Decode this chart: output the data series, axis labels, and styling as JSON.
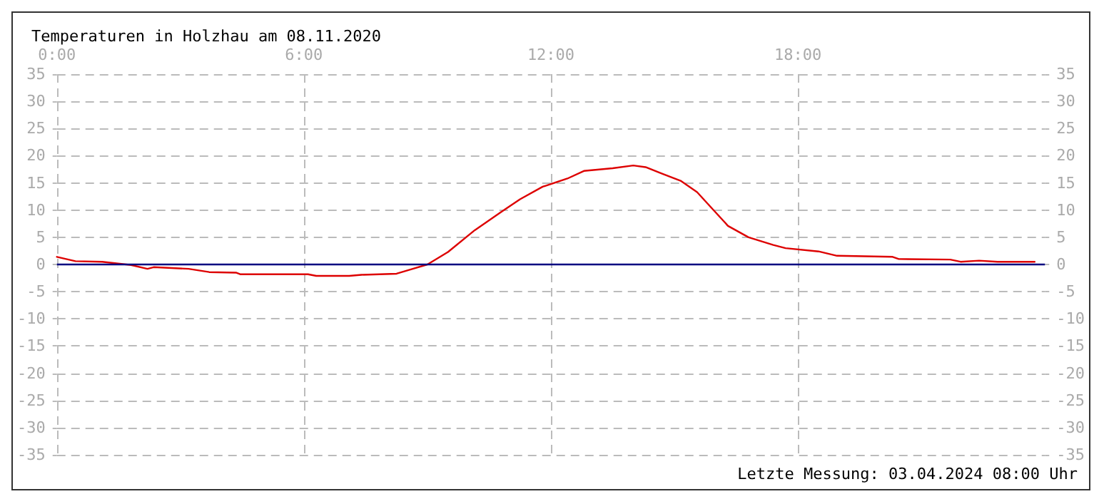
{
  "chart_data": {
    "type": "line",
    "title": "Temperaturen in Holzhau am 08.11.2020",
    "annotations": [
      "Letzte Messung: 03.04.2024 08:00 Uhr"
    ],
    "x": [
      0,
      0.45,
      1.1,
      1.8,
      2.2,
      2.35,
      3.2,
      3.7,
      4.35,
      4.45,
      6.1,
      6.3,
      7.1,
      7.4,
      8.25,
      8.6,
      9.0,
      9.5,
      10.15,
      10.8,
      11.25,
      11.8,
      12.4,
      12.8,
      13.5,
      14.0,
      14.3,
      14.7,
      15.15,
      15.55,
      15.95,
      16.3,
      16.8,
      17.4,
      17.7,
      18.5,
      18.95,
      20.3,
      20.45,
      21.7,
      21.95,
      22.4,
      22.85,
      23.75
    ],
    "series": [
      {
        "color": "#dd0000",
        "values": [
          1.4,
          0.6,
          0.5,
          -0.1,
          -0.8,
          -0.5,
          -0.8,
          -1.4,
          -1.5,
          -1.8,
          -1.8,
          -2.1,
          -2.1,
          -1.9,
          -1.7,
          -0.9,
          0,
          2.3,
          6.3,
          9.7,
          12.0,
          14.3,
          15.8,
          17.2,
          17.7,
          18.2,
          17.9,
          16.7,
          15.4,
          13.3,
          10,
          7.1,
          5.0,
          3.6,
          3.0,
          2.4,
          1.6,
          1.4,
          1.0,
          0.9,
          0.5,
          0.7,
          0.5,
          0.5
        ]
      }
    ],
    "xlim": [
      0,
      24
    ],
    "xticks": [
      {
        "value": 0,
        "label": "0:00"
      },
      {
        "value": 6,
        "label": "6:00"
      },
      {
        "value": 12,
        "label": "12:00"
      },
      {
        "value": 18,
        "label": "18:00"
      }
    ],
    "ylim": [
      -35,
      35
    ],
    "yticks": [
      -35,
      -30,
      -25,
      -20,
      -15,
      -10,
      -5,
      0,
      5,
      10,
      15,
      20,
      25,
      30,
      35
    ],
    "y2lim": [
      -35,
      35
    ],
    "y2ticks": [
      -35,
      -30,
      -25,
      -20,
      -15,
      -10,
      -5,
      0,
      5,
      10,
      15,
      20,
      25,
      30,
      35
    ],
    "ref_lines": [
      {
        "axis": "y",
        "value": 0,
        "color": "#000080"
      }
    ],
    "grid": true,
    "marker": "none",
    "line_style": "solid"
  }
}
